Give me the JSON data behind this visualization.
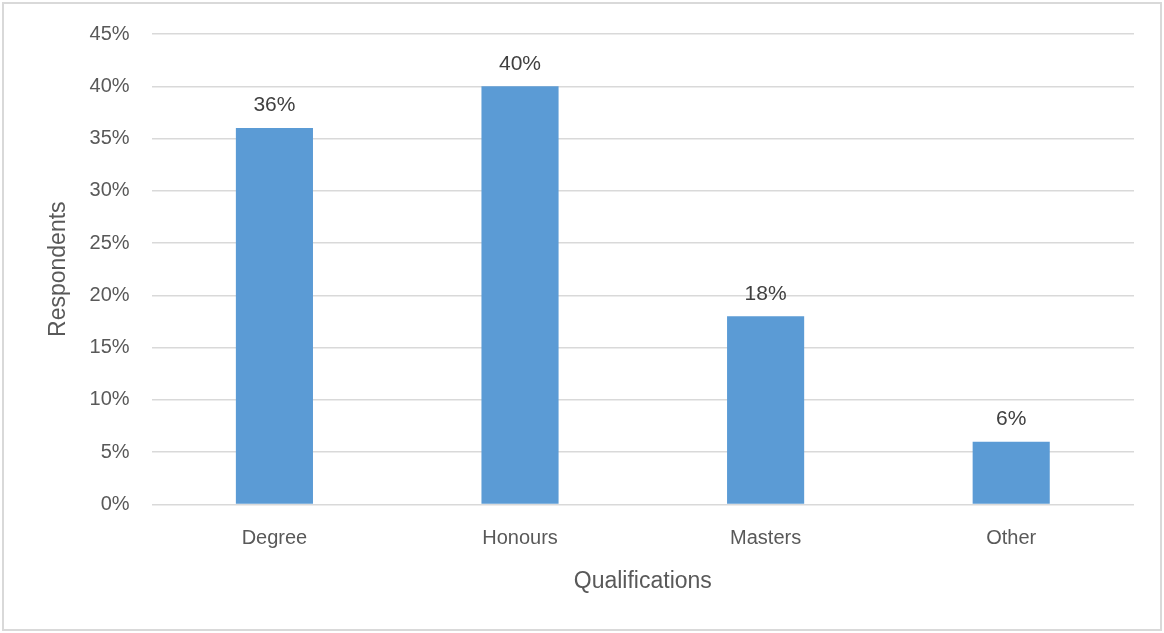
{
  "chart_data": {
    "type": "bar",
    "xlabel": "Qualifications",
    "ylabel": "Respondents",
    "categories": [
      "Degree",
      "Honours",
      "Masters",
      "Other"
    ],
    "values": [
      36,
      40,
      18,
      6
    ],
    "color": "#5b9bd5",
    "value_labels": [
      "36%",
      "40%",
      "18%",
      "6%"
    ],
    "ylim": [
      0,
      45
    ],
    "yticks": [
      {
        "value": 0,
        "label": "0%"
      },
      {
        "value": 5,
        "label": "5%"
      },
      {
        "value": 10,
        "label": "10%"
      },
      {
        "value": 15,
        "label": "15%"
      },
      {
        "value": 20,
        "label": "20%"
      },
      {
        "value": 25,
        "label": "25%"
      },
      {
        "value": 30,
        "label": "30%"
      },
      {
        "value": 35,
        "label": "35%"
      },
      {
        "value": 40,
        "label": "40%"
      },
      {
        "value": 45,
        "label": "45%"
      }
    ],
    "grid": "y",
    "legend": false
  }
}
